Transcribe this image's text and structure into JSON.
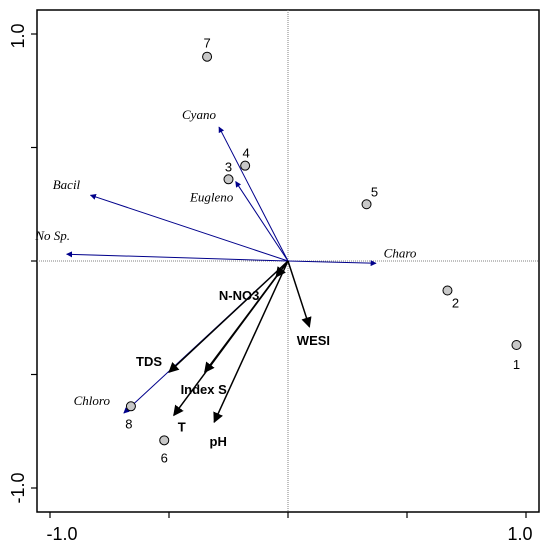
{
  "chart_data": {
    "type": "scatter",
    "title": "",
    "xlabel": "",
    "ylabel": "",
    "xlim": [
      -1.0,
      1.0
    ],
    "ylim": [
      -1.0,
      1.0
    ],
    "x_tick_labels": [
      "-1.0",
      "1.0"
    ],
    "y_tick_labels": [
      "1.0",
      "-1.0"
    ],
    "grid": false,
    "zero_lines": true,
    "series": [
      {
        "kind": "sites",
        "points": [
          {
            "label": "1",
            "x": 0.96,
            "y": -0.37
          },
          {
            "label": "2",
            "x": 0.67,
            "y": -0.13
          },
          {
            "label": "3",
            "x": -0.25,
            "y": 0.36
          },
          {
            "label": "4",
            "x": -0.18,
            "y": 0.42
          },
          {
            "label": "5",
            "x": 0.33,
            "y": 0.25
          },
          {
            "label": "6",
            "x": -0.52,
            "y": -0.79
          },
          {
            "label": "7",
            "x": -0.34,
            "y": 0.9
          },
          {
            "label": "8",
            "x": -0.66,
            "y": -0.64
          }
        ]
      },
      {
        "kind": "species",
        "color": "#00008B",
        "arrows": [
          {
            "label": "Cyano",
            "x": -0.29,
            "y": 0.59
          },
          {
            "label": "Bacil",
            "x": -0.83,
            "y": 0.29
          },
          {
            "label": "Eugleno",
            "x": -0.22,
            "y": 0.35
          },
          {
            "label": "No Sp.",
            "x": -0.93,
            "y": 0.03
          },
          {
            "label": "Charo",
            "x": 0.37,
            "y": -0.01
          },
          {
            "label": "Chloro",
            "x": -0.69,
            "y": -0.67
          }
        ]
      },
      {
        "kind": "environmental",
        "color": "#000000",
        "arrows": [
          {
            "label": "N-NO3",
            "x": -0.05,
            "y": -0.07
          },
          {
            "label": "WESI",
            "x": 0.09,
            "y": -0.29
          },
          {
            "label": "TDS",
            "x": -0.5,
            "y": -0.49
          },
          {
            "label": "Index S",
            "x": -0.35,
            "y": -0.49
          },
          {
            "label": "T",
            "x": -0.48,
            "y": -0.68
          },
          {
            "label": "pH",
            "x": -0.31,
            "y": -0.71
          }
        ]
      }
    ]
  }
}
